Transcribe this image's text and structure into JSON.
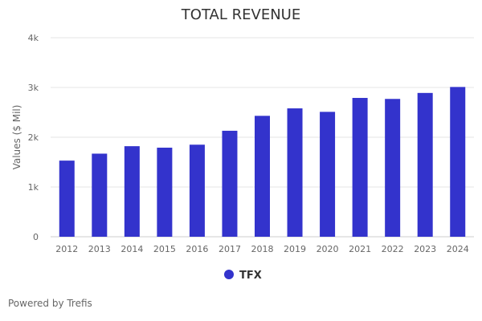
{
  "chart_data": {
    "type": "bar",
    "title": "TOTAL REVENUE",
    "ylabel": "Values ($ Mil)",
    "xlabel": "",
    "categories": [
      "2012",
      "2013",
      "2014",
      "2015",
      "2016",
      "2017",
      "2018",
      "2019",
      "2020",
      "2021",
      "2022",
      "2023",
      "2024"
    ],
    "series": [
      {
        "name": "TFX",
        "color": "#3333cc",
        "values": [
          1530,
          1670,
          1820,
          1790,
          1850,
          2130,
          2430,
          2580,
          2510,
          2790,
          2770,
          2890,
          3010
        ]
      }
    ],
    "ylim": [
      0,
      4000
    ],
    "yticks": [
      0,
      1000,
      2000,
      3000,
      4000
    ],
    "ytick_labels": [
      "0",
      "1k",
      "2k",
      "3k",
      "4k"
    ],
    "grid": true,
    "legend": "bottom-center"
  },
  "footer": {
    "credit": "Powered by Trefis"
  }
}
